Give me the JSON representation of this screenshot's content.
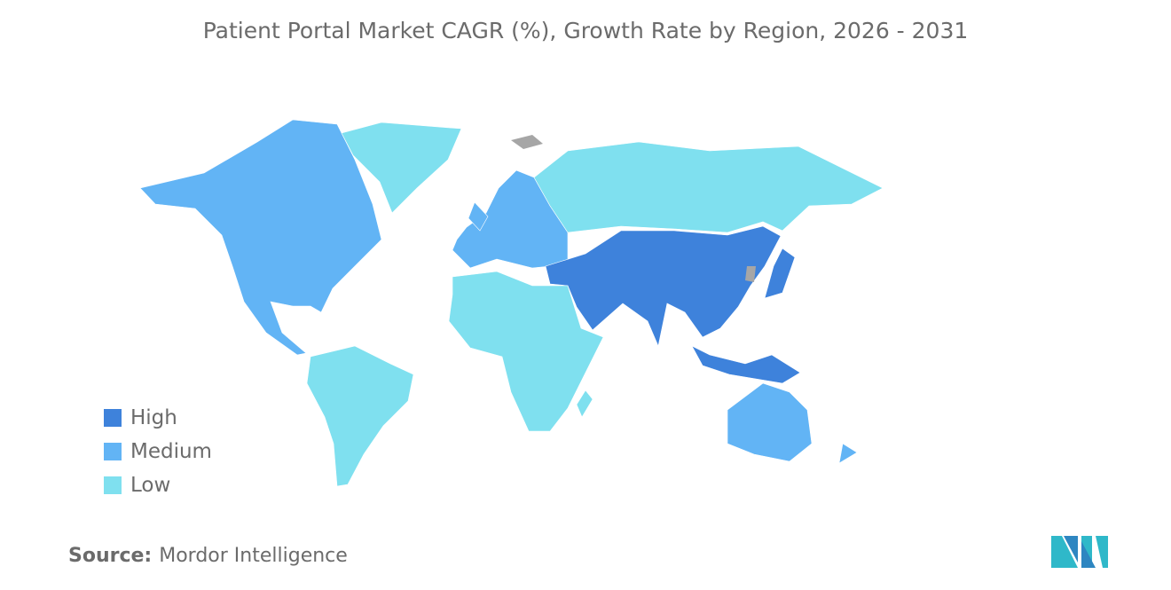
{
  "title": "Patient Portal Market CAGR (%), Growth Rate by Region, 2026 - 2031",
  "legend": [
    {
      "label": "High",
      "color": "#3e82db"
    },
    {
      "label": "Medium",
      "color": "#62b4f5"
    },
    {
      "label": "Low",
      "color": "#7fe0ef"
    }
  ],
  "no_data_color": "#a6a6a6",
  "regions": [
    {
      "name": "north-america",
      "level": "Medium"
    },
    {
      "name": "greenland",
      "level": "Low"
    },
    {
      "name": "south-america",
      "level": "Low"
    },
    {
      "name": "europe",
      "level": "Medium"
    },
    {
      "name": "united-kingdom",
      "level": "Medium"
    },
    {
      "name": "russia",
      "level": "Low"
    },
    {
      "name": "asia",
      "level": "High"
    },
    {
      "name": "japan",
      "level": "High"
    },
    {
      "name": "southeast-asia-islands",
      "level": "High"
    },
    {
      "name": "africa",
      "level": "Low"
    },
    {
      "name": "madagascar",
      "level": "Low"
    },
    {
      "name": "australia",
      "level": "Medium"
    },
    {
      "name": "new-zealand",
      "level": "Medium"
    }
  ],
  "source": {
    "label": "Source:",
    "value": "Mordor Intelligence"
  }
}
